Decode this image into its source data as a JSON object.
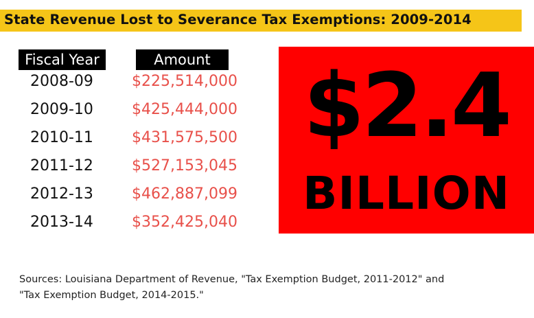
{
  "title": "State Revenue Lost to Severance Tax Exemptions: 2009-2014",
  "table": {
    "headers": {
      "year": "Fiscal Year",
      "amount": "Amount"
    },
    "rows": [
      {
        "year": "2008-09",
        "amount": "$225,514,000"
      },
      {
        "year": "2009-10",
        "amount": "$425,444,000"
      },
      {
        "year": "2010-11",
        "amount": "$431,575,500"
      },
      {
        "year": "2011-12",
        "amount": "$527,153,045"
      },
      {
        "year": "2012-13",
        "amount": "$462,887,099"
      },
      {
        "year": "2013-14",
        "amount": "$352,425,040"
      }
    ]
  },
  "total": {
    "amount": "$2.4",
    "unit": "BILLION"
  },
  "sources": {
    "line1": "Sources: Louisiana Department of Revenue, \"Tax Exemption Budget, 2011-2012\" and",
    "line2": "\"Tax Exemption Budget, 2014-2015.\""
  },
  "colors": {
    "banner": "#f5c518",
    "amount_text": "#e8504a",
    "total_box": "#ff0000",
    "header_bg": "#000000"
  }
}
